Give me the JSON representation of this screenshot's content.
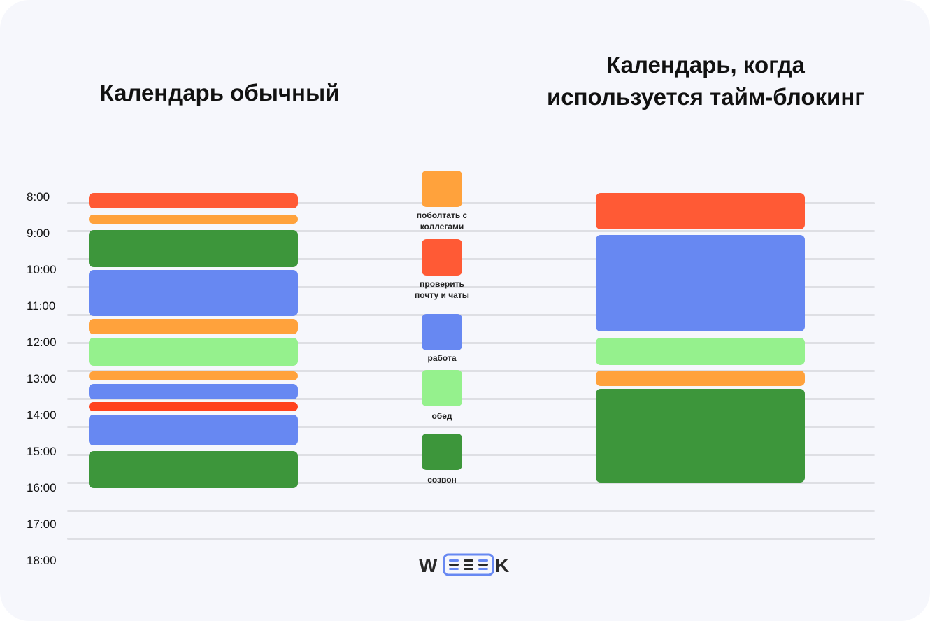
{
  "titles": {
    "left": "Календарь обычный",
    "right_line1": "Календарь, когда",
    "right_line2": "используется тайм-блокинг"
  },
  "time_labels": [
    "8:00",
    "9:00",
    "10:00",
    "11:00",
    "12:00",
    "13:00",
    "14:00",
    "15:00",
    "16:00",
    "17:00",
    "18:00"
  ],
  "categories": {
    "chat": {
      "label": "поболтать с коллегами",
      "line1": "поболтать с",
      "line2": "коллегами",
      "color": "#ffa23c"
    },
    "mail": {
      "label": "проверить почту и чаты",
      "line1": "проверить",
      "line2": "почту и чаты",
      "color": "#ff5a35"
    },
    "work": {
      "label": "работа",
      "color": "#6788f2"
    },
    "lunch": {
      "label": "обед",
      "color": "#95f18d"
    },
    "call": {
      "label": "созвон",
      "color": "#3d963b"
    }
  },
  "regular_calendar": [
    {
      "category": "mail",
      "start": "8:00",
      "end": "8:25"
    },
    {
      "category": "chat",
      "start": "8:35",
      "end": "8:50"
    },
    {
      "category": "call",
      "start": "9:00",
      "end": "10:00"
    },
    {
      "category": "work",
      "start": "10:05",
      "end": "11:20"
    },
    {
      "category": "chat",
      "start": "11:25",
      "end": "11:50"
    },
    {
      "category": "lunch",
      "start": "11:55",
      "end": "12:40"
    },
    {
      "category": "chat",
      "start": "12:50",
      "end": "13:05"
    },
    {
      "category": "work",
      "start": "13:10",
      "end": "13:35"
    },
    {
      "category": "mail",
      "start": "13:40",
      "end": "13:55",
      "color": "#ff421e"
    },
    {
      "category": "work",
      "start": "14:00",
      "end": "14:50"
    },
    {
      "category": "call",
      "start": "15:00",
      "end": "16:00"
    }
  ],
  "timeblocking_calendar": [
    {
      "category": "mail",
      "start": "8:00",
      "end": "9:00"
    },
    {
      "category": "work",
      "start": "9:10",
      "end": "11:50"
    },
    {
      "category": "lunch",
      "start": "12:00",
      "end": "12:45"
    },
    {
      "category": "chat",
      "start": "12:55",
      "end": "13:20"
    },
    {
      "category": "call",
      "start": "13:25",
      "end": "16:00"
    }
  ],
  "logo": {
    "text": "WEEEK",
    "accent": "#6788f2"
  }
}
